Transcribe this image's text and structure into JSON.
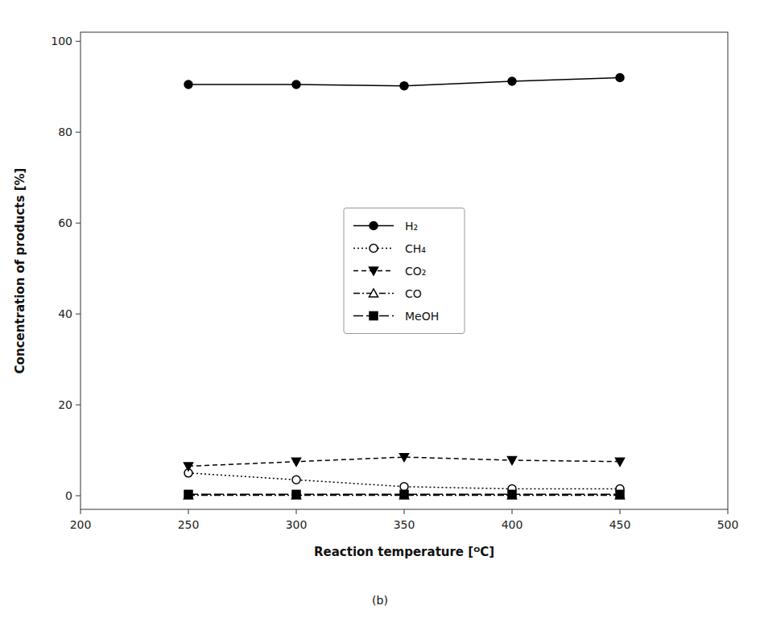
{
  "chart_data": {
    "type": "line",
    "x_label": "Reaction temperature [ᴼC]",
    "y_label": "Concentration of products [%]",
    "annotations": [
      "(b)"
    ],
    "x": [
      250,
      300,
      350,
      400,
      450
    ],
    "series": [
      {
        "name": "H₂",
        "color": "#000000",
        "values": [
          90.5,
          90.5,
          90.2,
          91.2,
          92.0
        ],
        "marker": "circle",
        "line_style": "solid"
      },
      {
        "name": "CH₄",
        "color": "#000000",
        "values": [
          5.0,
          3.5,
          2.0,
          1.5,
          1.5
        ],
        "marker": "circle-open",
        "line_style": "dotted"
      },
      {
        "name": "CO₂",
        "color": "#000000",
        "values": [
          6.5,
          7.5,
          8.5,
          7.8,
          7.5
        ],
        "marker": "triangle-down",
        "line_style": "dashed"
      },
      {
        "name": "CO",
        "color": "#000000",
        "values": [
          0.1,
          0.1,
          0.1,
          0.1,
          0.1
        ],
        "marker": "triangle-up-open",
        "line_style": "dashdot"
      },
      {
        "name": "MeOH",
        "color": "#000000",
        "values": [
          0.3,
          0.3,
          0.3,
          0.3,
          0.3
        ],
        "marker": "square",
        "line_style": "longdash"
      }
    ],
    "xlim": [
      200,
      500
    ],
    "ylim": [
      -3,
      102
    ],
    "xticks": [
      200,
      250,
      300,
      350,
      400,
      450,
      500
    ],
    "yticks": [
      0,
      20,
      40,
      60,
      80,
      100
    ],
    "grid": false,
    "legend": "center"
  }
}
